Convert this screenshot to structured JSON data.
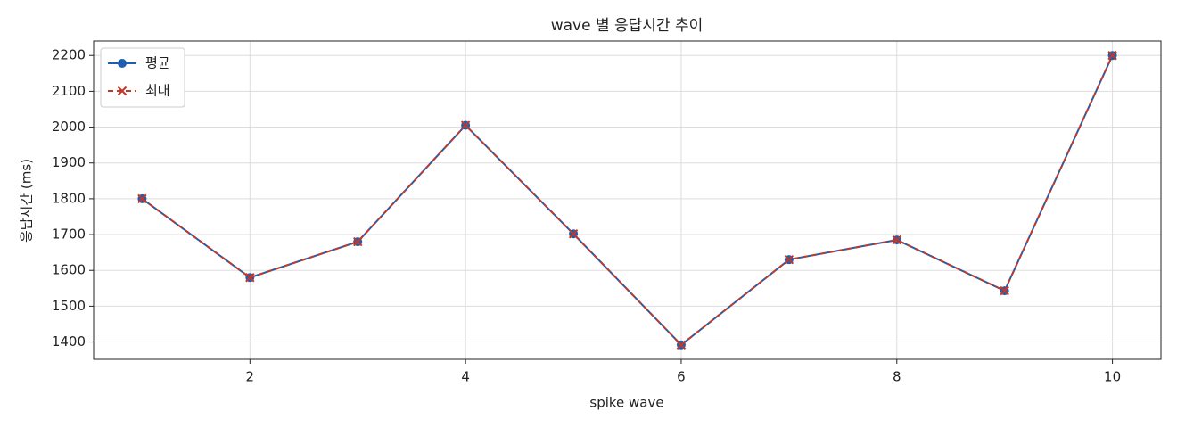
{
  "chart_data": {
    "type": "line",
    "title": "wave 별 응답시간 추이",
    "xlabel": "spike wave",
    "ylabel": "응답시간 (ms)",
    "x": [
      1,
      2,
      3,
      4,
      5,
      6,
      7,
      8,
      9,
      10
    ],
    "series": [
      {
        "name": "평균",
        "color": "#1f5fb0",
        "marker": "o",
        "linestyle": "solid",
        "values": [
          1800,
          1580,
          1680,
          2005,
          1702,
          1392,
          1630,
          1685,
          1543,
          2200
        ]
      },
      {
        "name": "최대",
        "color": "#c0392b",
        "marker": "x",
        "linestyle": "dashed",
        "values": [
          1800,
          1580,
          1680,
          2005,
          1702,
          1392,
          1630,
          1685,
          1543,
          2200
        ]
      }
    ],
    "xlim": [
      0.55,
      10.45
    ],
    "xticks": [
      2,
      4,
      6,
      8,
      10
    ],
    "ylim": [
      1351.6,
      2240.4
    ],
    "yticks": [
      1400,
      1500,
      1600,
      1700,
      1800,
      1900,
      2000,
      2100,
      2200
    ],
    "grid": true,
    "legend": "upper left"
  }
}
